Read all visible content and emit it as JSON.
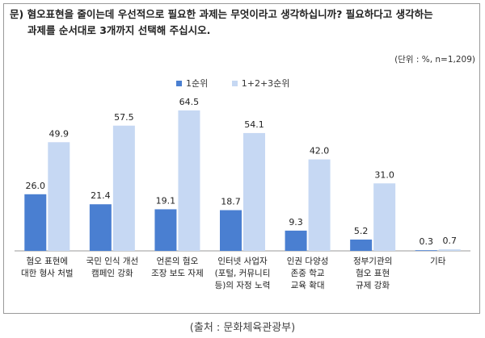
{
  "question": {
    "line1": "문) 혐오표현을 줄이는데 우선적으로 필요한 과제는 무엇이라고 생각하십니까? 필요하다고 생각하는",
    "line2": "과제를 순서대로 3개까지 선택해 주십시오."
  },
  "unit_note": "(단위 : %, n=1,209)",
  "source": "(출처 : 문화체육관광부)",
  "colors": {
    "series1": "#4a7fd1",
    "series2": "#c6d8f3",
    "axis": "#999999"
  },
  "chart_data": {
    "type": "bar",
    "categories": [
      [
        "혐오 표현에",
        "대한 형사 처벌"
      ],
      [
        "국민 인식 개선",
        "캠페인 강화"
      ],
      [
        "언론의 혐오",
        "조장 보도 자제"
      ],
      [
        "인터넷 사업자",
        "(포털, 커뮤니티",
        "등)의 자정 노력"
      ],
      [
        "인권 다양성",
        "존중 학교",
        "교육 확대"
      ],
      [
        "정부기관의",
        "혐오 표현",
        "규제 강화"
      ],
      [
        "기타"
      ]
    ],
    "series": [
      {
        "name": "1순위",
        "values": [
          26.0,
          21.4,
          19.1,
          18.7,
          9.3,
          5.2,
          0.3
        ]
      },
      {
        "name": "1+2+3순위",
        "values": [
          49.9,
          57.5,
          64.5,
          54.1,
          42.0,
          31.0,
          0.7
        ]
      }
    ],
    "ylim": [
      0,
      70
    ]
  }
}
